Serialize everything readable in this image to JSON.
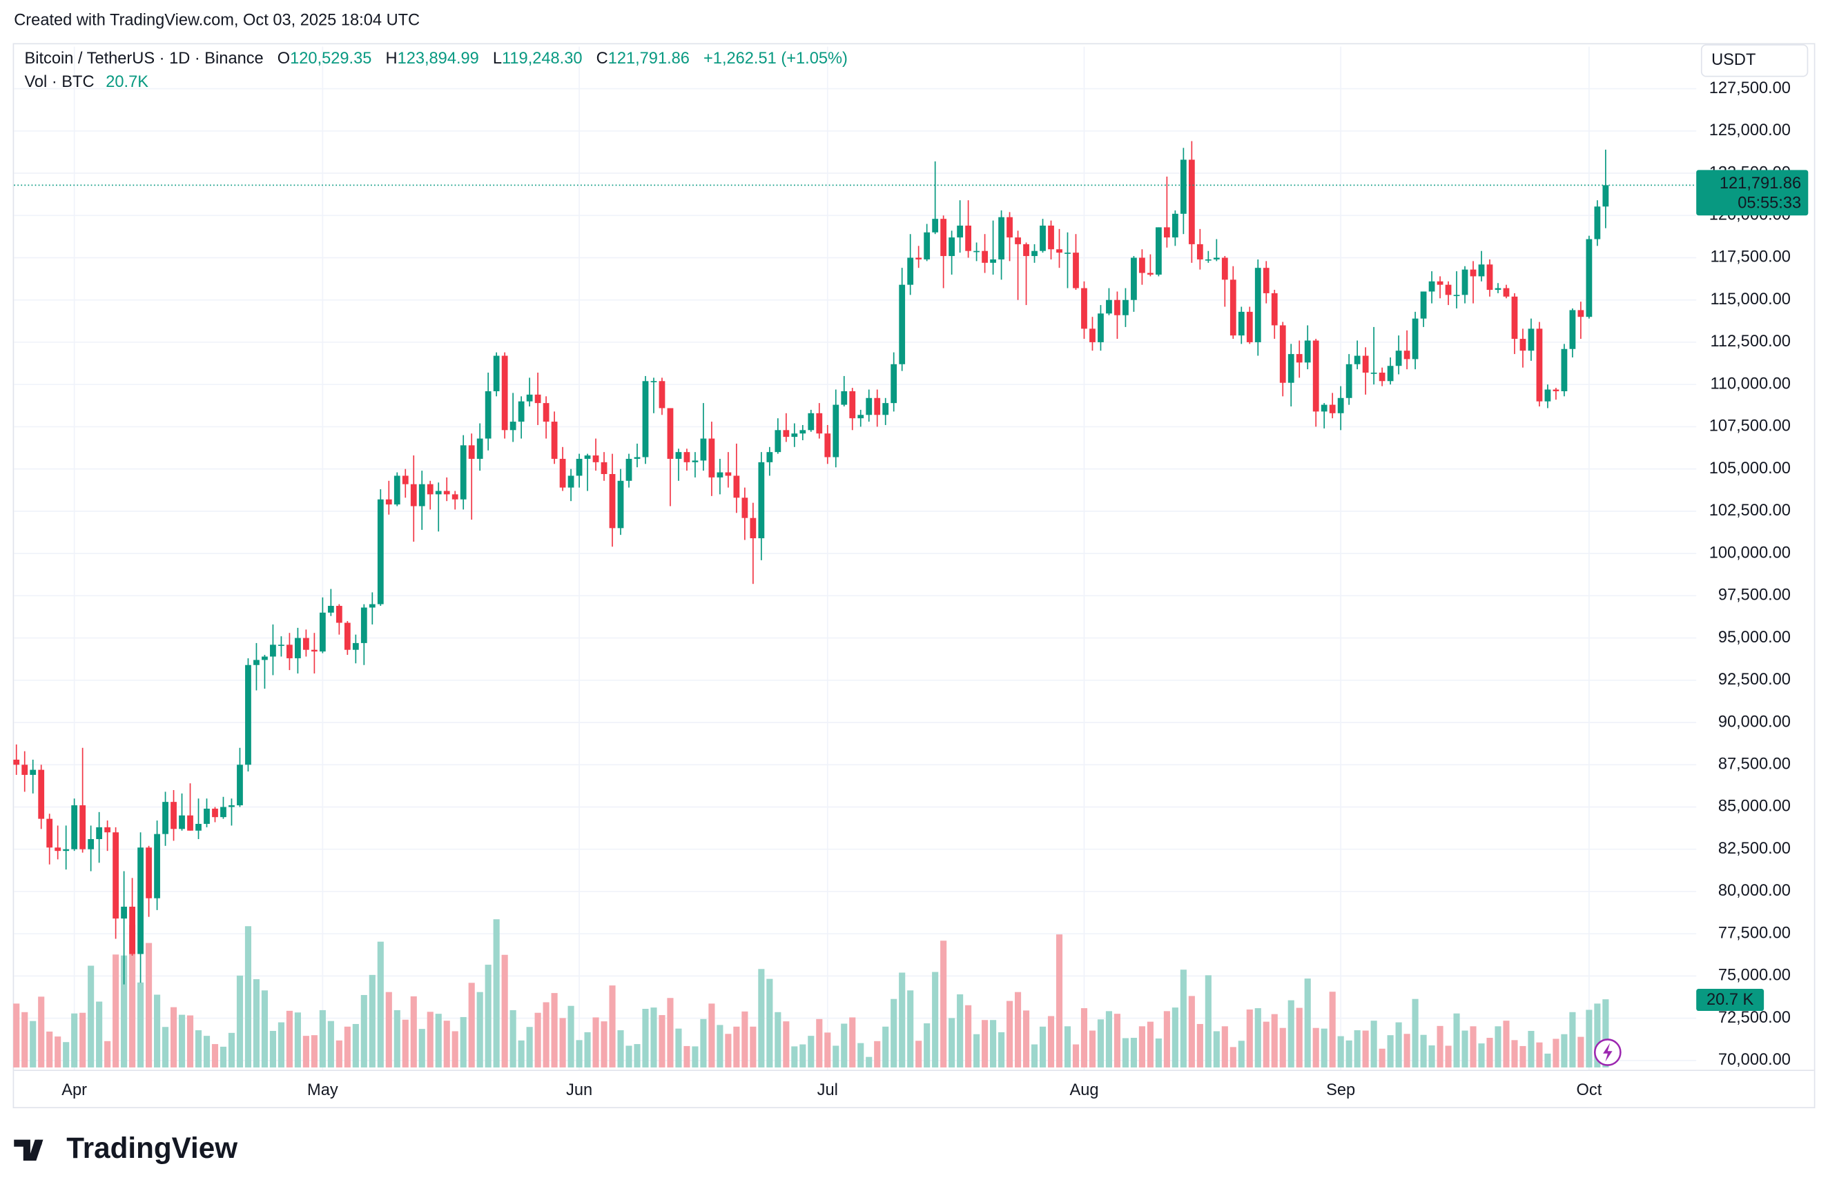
{
  "header": {
    "text": "Created with TradingView.com, Oct 03, 2025 18:04 UTC"
  },
  "footer": {
    "logo": "TradingView"
  },
  "chart_data": {
    "type": "candlestick",
    "title": "Bitcoin / TetherUS · 1D · Binance",
    "ohlc": [
      {
        "key": "O",
        "value": "120,529.35"
      },
      {
        "key": "H",
        "value": "123,894.99"
      },
      {
        "key": "L",
        "value": "119,248.30"
      },
      {
        "key": "C",
        "value": "121,791.86"
      }
    ],
    "change": "+1,262.51 (+1.05%)",
    "currency": "USDT",
    "last_price_label": "121,791.86",
    "countdown": "05:55:33",
    "up_color": "#089981",
    "down_color": "#f23645",
    "categories": [
      null,
      null,
      null,
      null,
      null,
      null,
      null,
      "Apr",
      null,
      null,
      null,
      null,
      null,
      null,
      null,
      null,
      null,
      null,
      null,
      null,
      null,
      null,
      null,
      null,
      null,
      null,
      null,
      null,
      null,
      null,
      null,
      null,
      null,
      null,
      null,
      null,
      null,
      "May",
      null,
      null,
      null,
      null,
      null,
      null,
      null,
      null,
      null,
      null,
      null,
      null,
      null,
      null,
      null,
      null,
      null,
      null,
      null,
      null,
      null,
      null,
      null,
      null,
      null,
      null,
      null,
      null,
      null,
      null,
      "Jun",
      null,
      null,
      null,
      null,
      null,
      null,
      null,
      null,
      null,
      null,
      null,
      null,
      null,
      null,
      null,
      null,
      null,
      null,
      null,
      null,
      null,
      null,
      null,
      null,
      null,
      null,
      null,
      null,
      null,
      "Jul",
      null,
      null,
      null,
      null,
      null,
      null,
      null,
      null,
      null,
      null,
      null,
      null,
      null,
      null,
      null,
      null,
      null,
      null,
      null,
      null,
      null,
      null,
      null,
      null,
      null,
      null,
      null,
      null,
      null,
      null,
      "Aug",
      null,
      null,
      null,
      null,
      null,
      null,
      null,
      null,
      null,
      null,
      null,
      null,
      null,
      null,
      null,
      null,
      null,
      null,
      null,
      null,
      null,
      null,
      null,
      null,
      null,
      null,
      null,
      null,
      null,
      null,
      "Sep",
      null,
      null,
      null,
      null,
      null,
      null,
      null,
      null,
      null,
      null,
      null,
      null,
      null,
      null,
      null,
      null,
      null,
      null,
      null,
      null,
      null,
      null,
      null,
      null,
      null,
      null,
      null,
      null,
      null,
      "Oct",
      null,
      null
    ],
    "open": [
      87800,
      87500,
      86900,
      87200,
      84300,
      82600,
      82400,
      82500,
      85100,
      82500,
      83100,
      83800,
      83500,
      78400,
      79100,
      76300,
      82600,
      79600,
      83400,
      85300,
      83700,
      84500,
      83600,
      84000,
      84900,
      84400,
      85000,
      85100,
      87500,
      93400,
      93700,
      93900,
      94600,
      94600,
      93800,
      95000,
      94300,
      94200,
      96500,
      96900,
      95900,
      94300,
      94700,
      96800,
      97000,
      103200,
      102900,
      104600,
      104100,
      102800,
      104100,
      103500,
      103700,
      103500,
      103200,
      106400,
      105600,
      106800,
      109600,
      111700,
      107300,
      107800,
      109000,
      109400,
      108900,
      107800,
      105600,
      103900,
      104600,
      105600,
      105800,
      105400,
      104700,
      101500,
      104300,
      105600,
      105700,
      110200,
      110200,
      108600,
      105600,
      106000,
      105400,
      105500,
      106800,
      104500,
      104800,
      104600,
      103300,
      102100,
      100900,
      105400,
      106000,
      107300,
      106900,
      107100,
      107300,
      108300,
      107100,
      105700,
      108800,
      109600,
      108000,
      108200,
      109200,
      108200,
      108900,
      111200,
      115900,
      117500,
      117400,
      119000,
      119800,
      117600,
      118700,
      119400,
      117900,
      117900,
      117200,
      117400,
      119900,
      118700,
      118300,
      117600,
      117900,
      119400,
      118000,
      117800,
      117800,
      115700,
      113300,
      112500,
      114200,
      115000,
      114100,
      115000,
      117500,
      116600,
      116500,
      119300,
      118700,
      120100,
      123300,
      118300,
      117400,
      117400,
      117500,
      116200,
      112900,
      114300,
      112500,
      116900,
      115400,
      113500,
      110100,
      111800,
      111300,
      112600,
      108400,
      108800,
      108300,
      109200,
      111200,
      111700,
      110700,
      110700,
      110200,
      111100,
      112000,
      111500,
      113900,
      115500,
      116100,
      115900,
      115300,
      115300,
      116800,
      116400,
      117100,
      115600,
      115700,
      115200,
      112700,
      112000,
      113300,
      109000,
      109700,
      109600,
      112100,
      114400,
      114000,
      118600,
      120529.35
    ],
    "high": [
      88700,
      88300,
      87800,
      87500,
      84600,
      83900,
      83900,
      85500,
      88500,
      83900,
      84700,
      84200,
      83800,
      81200,
      80800,
      83500,
      82700,
      84200,
      85900,
      86000,
      85800,
      86400,
      85500,
      85500,
      85000,
      85600,
      85500,
      88500,
      93800,
      94700,
      94000,
      95800,
      95100,
      95300,
      95600,
      95500,
      95300,
      97400,
      97900,
      97000,
      96000,
      95200,
      97000,
      97700,
      103800,
      104300,
      104800,
      105000,
      105800,
      104900,
      104300,
      104200,
      104500,
      103700,
      107000,
      107100,
      107700,
      110700,
      111900,
      111900,
      109500,
      109300,
      110400,
      110700,
      109300,
      108400,
      106300,
      105000,
      105900,
      105900,
      106800,
      106000,
      105900,
      105000,
      105900,
      106500,
      110500,
      110400,
      110400,
      108600,
      106200,
      106200,
      106000,
      108900,
      107800,
      105600,
      106000,
      106500,
      103900,
      103000,
      106000,
      106300,
      108000,
      108300,
      107700,
      107600,
      108500,
      108900,
      107600,
      109700,
      110500,
      109800,
      108500,
      109700,
      109700,
      109200,
      111900,
      116900,
      118900,
      118200,
      119500,
      123200,
      120000,
      119100,
      120900,
      120900,
      118400,
      118900,
      119700,
      120300,
      120200,
      119100,
      118400,
      118300,
      119800,
      119700,
      119200,
      119000,
      118900,
      116100,
      114000,
      114700,
      115700,
      115500,
      115700,
      117600,
      118000,
      117700,
      119300,
      122300,
      120300,
      124000,
      124400,
      119200,
      117900,
      118600,
      117600,
      117000,
      114600,
      114600,
      117400,
      117300,
      115600,
      113700,
      112400,
      112600,
      113500,
      112700,
      108900,
      109500,
      109900,
      111800,
      112600,
      112200,
      113400,
      111000,
      111600,
      112900,
      113200,
      114300,
      115500,
      116700,
      116400,
      116100,
      116700,
      117000,
      117300,
      117900,
      117400,
      116000,
      115900,
      115400,
      113300,
      113900,
      113700,
      110000,
      109800,
      112400,
      114500,
      114900,
      118800,
      120900,
      123894.99
    ],
    "low": [
      86900,
      85900,
      85800,
      83700,
      81600,
      81900,
      81300,
      82400,
      82300,
      81200,
      81700,
      82400,
      77200,
      74500,
      76200,
      74600,
      78500,
      78900,
      82700,
      83000,
      83600,
      83600,
      83100,
      83800,
      84100,
      84300,
      83900,
      85000,
      87100,
      91900,
      92000,
      92800,
      93900,
      93100,
      92900,
      93900,
      92900,
      94100,
      96300,
      95200,
      94000,
      93500,
      93400,
      95800,
      96900,
      102300,
      102800,
      103300,
      100700,
      101400,
      102600,
      101300,
      103100,
      102600,
      102600,
      102000,
      104900,
      106100,
      109300,
      106800,
      106600,
      106800,
      108700,
      107600,
      106800,
      105300,
      103700,
      103100,
      103900,
      103700,
      104900,
      104300,
      100400,
      101100,
      103900,
      105100,
      105300,
      108300,
      108200,
      102800,
      104300,
      104900,
      104500,
      104900,
      103400,
      103500,
      103900,
      102400,
      100800,
      98200,
      99600,
      104600,
      105900,
      106600,
      106300,
      106700,
      107200,
      106800,
      105300,
      105100,
      108700,
      107300,
      107500,
      107800,
      107500,
      107600,
      108400,
      110800,
      115300,
      116900,
      117300,
      118900,
      115700,
      116500,
      117800,
      117500,
      117300,
      116600,
      116500,
      116200,
      117300,
      115000,
      114700,
      117200,
      117800,
      117400,
      116900,
      115700,
      115600,
      112700,
      112000,
      112000,
      114100,
      112700,
      113400,
      114300,
      115900,
      116400,
      116400,
      118100,
      118200,
      118900,
      117200,
      116800,
      117200,
      117300,
      114600,
      112700,
      112400,
      112400,
      111700,
      114800,
      112700,
      109300,
      108700,
      110400,
      110900,
      107500,
      107400,
      108000,
      107300,
      108800,
      110900,
      109400,
      110000,
      109900,
      110000,
      110600,
      110900,
      110900,
      113400,
      114800,
      115100,
      114700,
      114500,
      114800,
      114800,
      116100,
      115200,
      115400,
      115100,
      111800,
      111000,
      111400,
      108700,
      108600,
      109100,
      109300,
      111600,
      112700,
      113900,
      118200,
      119248.3
    ],
    "close": [
      87500,
      86900,
      87200,
      84300,
      82600,
      82400,
      82500,
      85100,
      82500,
      83100,
      83800,
      83500,
      78400,
      79100,
      76300,
      82600,
      79600,
      83400,
      85300,
      83700,
      84500,
      83600,
      84000,
      84900,
      84400,
      85000,
      85100,
      87500,
      93400,
      93700,
      93900,
      94600,
      94600,
      93800,
      95000,
      94300,
      94200,
      96500,
      96900,
      95900,
      94300,
      94700,
      96800,
      97000,
      103200,
      102900,
      104600,
      104100,
      102800,
      104100,
      103500,
      103700,
      103500,
      103200,
      106400,
      105600,
      106800,
      109600,
      111700,
      107300,
      107800,
      109000,
      109400,
      108900,
      107800,
      105600,
      103900,
      104600,
      105600,
      105800,
      105400,
      104700,
      101500,
      104300,
      105600,
      105700,
      110200,
      110200,
      108600,
      105600,
      106000,
      105400,
      105500,
      106800,
      104500,
      104800,
      104600,
      103300,
      102100,
      100900,
      105400,
      106000,
      107300,
      106900,
      107100,
      107300,
      108300,
      107100,
      105700,
      108800,
      109600,
      108000,
      108200,
      109200,
      108200,
      108900,
      111200,
      115900,
      117500,
      117400,
      119000,
      119800,
      117600,
      118700,
      119400,
      117900,
      117900,
      117200,
      117400,
      119900,
      118700,
      118300,
      117600,
      117900,
      119400,
      118000,
      117800,
      117800,
      115700,
      113300,
      112500,
      114200,
      115000,
      114100,
      115000,
      117500,
      116600,
      116500,
      119300,
      118700,
      120100,
      123300,
      118300,
      117400,
      117400,
      117500,
      116200,
      112900,
      114300,
      112500,
      116900,
      115400,
      113500,
      110100,
      111800,
      111300,
      112600,
      108400,
      108800,
      108300,
      109200,
      111200,
      111700,
      110700,
      110700,
      110200,
      111100,
      112000,
      111500,
      113900,
      115500,
      116100,
      115900,
      115300,
      115300,
      116800,
      116400,
      117100,
      115600,
      115700,
      115200,
      112700,
      112000,
      113300,
      109000,
      109700,
      109600,
      112100,
      114400,
      114000,
      118600,
      120529.35,
      121791.86
    ],
    "ylim": [
      69450,
      129990
    ],
    "yticks": [
      {
        "value": 70000,
        "label": "70,000.00"
      },
      {
        "value": 72500,
        "label": "72,500.00"
      },
      {
        "value": 75000,
        "label": "75,000.00"
      },
      {
        "value": 77500,
        "label": "77,500.00"
      },
      {
        "value": 80000,
        "label": "80,000.00"
      },
      {
        "value": 82500,
        "label": "82,500.00"
      },
      {
        "value": 85000,
        "label": "85,000.00"
      },
      {
        "value": 87500,
        "label": "87,500.00"
      },
      {
        "value": 90000,
        "label": "90,000.00"
      },
      {
        "value": 92500,
        "label": "92,500.00"
      },
      {
        "value": 95000,
        "label": "95,000.00"
      },
      {
        "value": 97500,
        "label": "97,500.00"
      },
      {
        "value": 100000,
        "label": "100,000.00"
      },
      {
        "value": 102500,
        "label": "102,500.00"
      },
      {
        "value": 105000,
        "label": "105,000.00"
      },
      {
        "value": 107500,
        "label": "107,500.00"
      },
      {
        "value": 110000,
        "label": "110,000.00"
      },
      {
        "value": 112500,
        "label": "112,500.00"
      },
      {
        "value": 115000,
        "label": "115,000.00"
      },
      {
        "value": 117500,
        "label": "117,500.00"
      },
      {
        "value": 120000,
        "label": "120,000.00"
      },
      {
        "value": 122500,
        "label": "122,500.00"
      },
      {
        "value": 125000,
        "label": "125,000.00"
      },
      {
        "value": 127500,
        "label": "127,500.00"
      }
    ],
    "grid": true,
    "volume": {
      "name": "Vol · BTC",
      "last_label": "20.7K",
      "badge_label": "20.7 K",
      "up_color": "#9cd6cc",
      "down_color": "#f5a8ae",
      "ylim": [
        0,
        310000
      ],
      "values": [
        19400,
        16800,
        14100,
        21500,
        10900,
        9400,
        7700,
        16400,
        16600,
        30900,
        20000,
        8000,
        34300,
        34000,
        43300,
        25800,
        37800,
        22100,
        12300,
        18300,
        16000,
        15800,
        11300,
        9600,
        7100,
        6300,
        10500,
        27900,
        42900,
        26800,
        23400,
        11100,
        13700,
        17200,
        16700,
        9600,
        9800,
        17400,
        14100,
        8200,
        12400,
        13200,
        22000,
        28100,
        38200,
        22900,
        17400,
        14500,
        21600,
        11700,
        16900,
        16300,
        14200,
        11000,
        15300,
        25700,
        22900,
        31200,
        45000,
        34200,
        17400,
        8200,
        12300,
        16600,
        19800,
        22600,
        15000,
        18700,
        8300,
        10700,
        15200,
        14000,
        24900,
        11300,
        6600,
        7100,
        17800,
        18200,
        15900,
        21100,
        11800,
        6500,
        6400,
        14700,
        19400,
        12900,
        10200,
        12400,
        17000,
        12400,
        29900,
        26900,
        16800,
        14000,
        6400,
        7000,
        9600,
        14700,
        10600,
        6600,
        13300,
        15200,
        7400,
        3200,
        8000,
        12400,
        20800,
        28800,
        23400,
        8100,
        13400,
        29000,
        38500,
        15000,
        22200,
        18900,
        10100,
        14400,
        14400,
        10700,
        20200,
        22900,
        17300,
        7000,
        12400,
        15600,
        40400,
        12500,
        7000,
        18000,
        11200,
        14600,
        17100,
        16300,
        8900,
        9000,
        12500,
        13900,
        8800,
        17100,
        18200,
        29700,
        21700,
        13200,
        28000,
        11000,
        12500,
        6200,
        8100,
        17600,
        18000,
        13900,
        16200,
        12000,
        20400,
        18100,
        27000,
        12000,
        11800,
        23000,
        9500,
        8200,
        11300,
        11200,
        14200,
        5700,
        9800,
        13700,
        10200,
        20800,
        9900,
        6700,
        12600,
        6600,
        16400,
        11200,
        12500,
        7300,
        9000,
        12500,
        14200,
        8300,
        6500,
        11100,
        7600,
        4200,
        8700,
        10100,
        16800,
        9300,
        17500,
        19400,
        20700
      ]
    }
  }
}
